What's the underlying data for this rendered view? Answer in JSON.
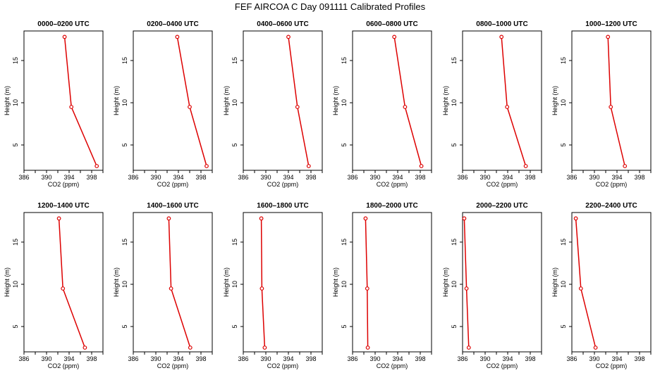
{
  "title": "FEF AIRCOA C  Day 091111  Calibrated Profiles",
  "chart_data": {
    "type": "line",
    "xlabel": "CO2 (ppm)",
    "ylabel": "Height (m)",
    "xlim": [
      386,
      400
    ],
    "ylim": [
      2,
      18.5
    ],
    "x_ticks": [
      "386",
      "390",
      "394",
      "398"
    ],
    "y_ticks": [
      "5",
      "10",
      "15"
    ],
    "heights": [
      17.8,
      9.5,
      2.5
    ],
    "color": "#dd0000",
    "panels": [
      {
        "title": "0000–0200 UTC",
        "co2": [
          393.2,
          394.4,
          398.9
        ]
      },
      {
        "title": "0200–0400 UTC",
        "co2": [
          393.8,
          396.0,
          399.0
        ]
      },
      {
        "title": "0400–0600 UTC",
        "co2": [
          394.0,
          395.6,
          397.6
        ]
      },
      {
        "title": "0600–0800 UTC",
        "co2": [
          393.4,
          395.3,
          398.2
        ]
      },
      {
        "title": "0800–1000 UTC",
        "co2": [
          392.9,
          393.9,
          397.2
        ]
      },
      {
        "title": "1000–1200 UTC",
        "co2": [
          392.4,
          392.9,
          395.4
        ]
      },
      {
        "title": "1200–1400 UTC",
        "co2": [
          392.2,
          392.9,
          396.8
        ]
      },
      {
        "title": "1400–1600 UTC",
        "co2": [
          392.3,
          392.7,
          396.1
        ]
      },
      {
        "title": "1600–1800 UTC",
        "co2": [
          389.2,
          389.3,
          389.8
        ]
      },
      {
        "title": "1800–2000 UTC",
        "co2": [
          388.3,
          388.6,
          388.7
        ]
      },
      {
        "title": "2000–2200 UTC",
        "co2": [
          386.3,
          386.7,
          387.1
        ]
      },
      {
        "title": "2200–2400 UTC",
        "co2": [
          386.7,
          387.6,
          390.2
        ]
      }
    ]
  }
}
